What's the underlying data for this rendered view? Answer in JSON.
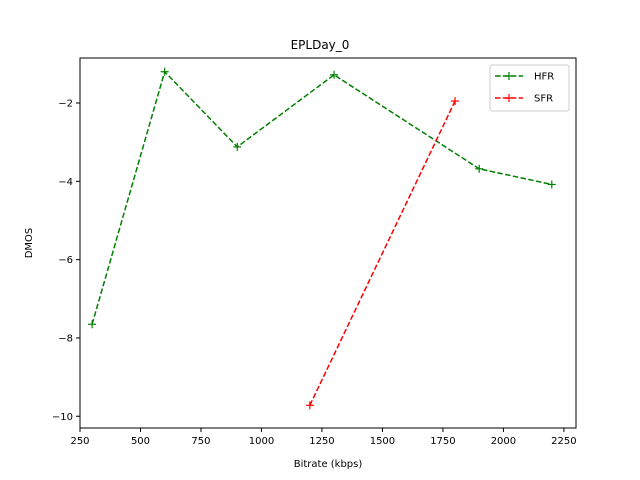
{
  "chart_data": {
    "type": "line",
    "title": "EPLDay_0",
    "xlabel": "Bitrate (kbps)",
    "ylabel": "DMOS",
    "xlim": [
      250,
      2300
    ],
    "ylim": [
      -10.3,
      -0.85
    ],
    "xticks": [
      250,
      500,
      750,
      1000,
      1250,
      1500,
      1750,
      2000,
      2250
    ],
    "yticks": [
      -10,
      -8,
      -6,
      -4,
      -2
    ],
    "xtick_labels": [
      "250",
      "500",
      "750",
      "1000",
      "1250",
      "1500",
      "1750",
      "2000",
      "2250"
    ],
    "ytick_labels": [
      "−10",
      "−8",
      "−6",
      "−4",
      "−2"
    ],
    "grid": false,
    "legend_position": "top-right",
    "series": [
      {
        "name": "HFR",
        "color": "#008000",
        "line_style": "dashed",
        "marker": "plus",
        "x": [
          300,
          600,
          900,
          1300,
          1900,
          2200
        ],
        "y": [
          -7.65,
          -1.2,
          -3.12,
          -1.28,
          -3.68,
          -4.08
        ]
      },
      {
        "name": "SFR",
        "color": "#ff0000",
        "line_style": "dashed",
        "marker": "plus",
        "x": [
          1200,
          1800
        ],
        "y": [
          -9.72,
          -1.95
        ]
      }
    ]
  }
}
